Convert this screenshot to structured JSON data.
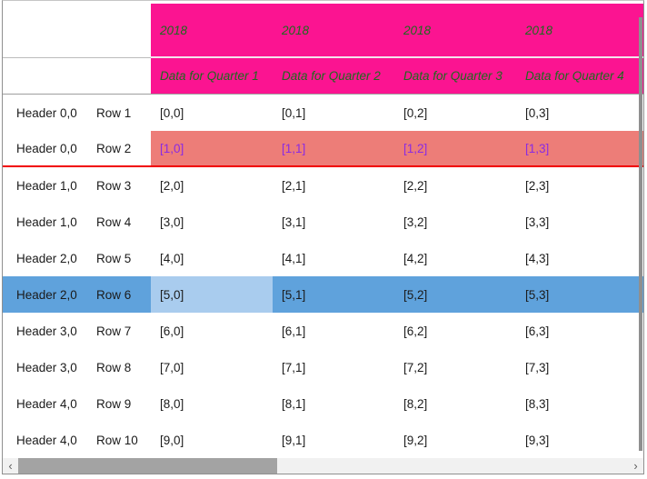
{
  "table": {
    "year_row": [
      "2018",
      "2018",
      "2018",
      "2018"
    ],
    "quarter_row": [
      "Data for Quarter 1",
      "Data for Quarter 2",
      "Data for Quarter 3",
      "Data for Quarter 4"
    ],
    "rows": [
      {
        "group": "Header 0,0",
        "label": "Row 1",
        "cells": [
          "[0,0]",
          "[0,1]",
          "[0,2]",
          "[0,3]"
        ],
        "state": "normal"
      },
      {
        "group": "Header 0,0",
        "label": "Row 2",
        "cells": [
          "[1,0]",
          "[1,1]",
          "[1,2]",
          "[1,3]"
        ],
        "state": "error"
      },
      {
        "group": "Header 1,0",
        "label": "Row 3",
        "cells": [
          "[2,0]",
          "[2,1]",
          "[2,2]",
          "[2,3]"
        ],
        "state": "normal"
      },
      {
        "group": "Header 1,0",
        "label": "Row 4",
        "cells": [
          "[3,0]",
          "[3,1]",
          "[3,2]",
          "[3,3]"
        ],
        "state": "normal"
      },
      {
        "group": "Header 2,0",
        "label": "Row 5",
        "cells": [
          "[4,0]",
          "[4,1]",
          "[4,2]",
          "[4,3]"
        ],
        "state": "normal"
      },
      {
        "group": "Header 2,0",
        "label": "Row 6",
        "cells": [
          "[5,0]",
          "[5,1]",
          "[5,2]",
          "[5,3]"
        ],
        "state": "selected",
        "current_cell": 0
      },
      {
        "group": "Header 3,0",
        "label": "Row 7",
        "cells": [
          "[6,0]",
          "[6,1]",
          "[6,2]",
          "[6,3]"
        ],
        "state": "normal"
      },
      {
        "group": "Header 3,0",
        "label": "Row 8",
        "cells": [
          "[7,0]",
          "[7,1]",
          "[7,2]",
          "[7,3]"
        ],
        "state": "normal"
      },
      {
        "group": "Header 4,0",
        "label": "Row 9",
        "cells": [
          "[8,0]",
          "[8,1]",
          "[8,2]",
          "[8,3]"
        ],
        "state": "normal"
      },
      {
        "group": "Header 4,0",
        "label": "Row 10",
        "cells": [
          "[9,0]",
          "[9,1]",
          "[9,2]",
          "[9,3]"
        ],
        "state": "normal"
      }
    ],
    "colors": {
      "header_bg": "#FB1491",
      "header_text": "#1D6A1D",
      "error_bg": "#ED7D78",
      "error_text": "#8A2BE2",
      "error_border": "#F10000",
      "selected_bg": "#5FA2DC",
      "current_cell_bg": "#A9CCEE"
    },
    "scrollbar": {
      "left_arrow": "‹",
      "right_arrow": "›"
    }
  }
}
